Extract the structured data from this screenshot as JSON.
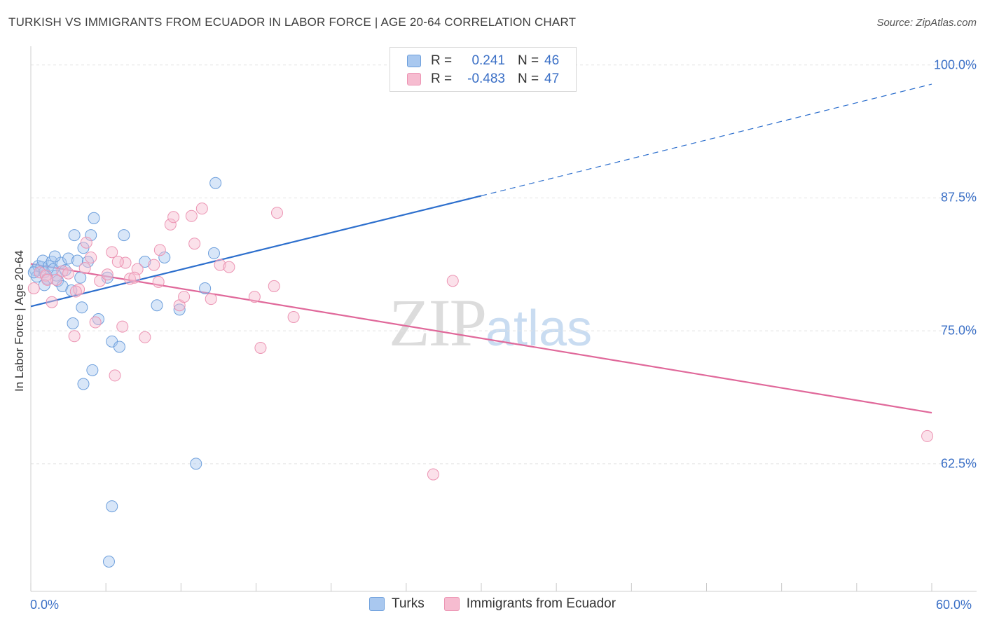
{
  "title": "TURKISH VS IMMIGRANTS FROM ECUADOR IN LABOR FORCE | AGE 20-64 CORRELATION CHART",
  "source": "Source: ZipAtlas.com",
  "watermark": {
    "zip": "ZIP",
    "atlas": "atlas"
  },
  "legend": {
    "rows": [
      {
        "r_label": "R =",
        "r_value": "0.241",
        "n_label": "N =",
        "n_value": "46"
      },
      {
        "r_label": "R =",
        "r_value": "-0.483",
        "n_label": "N =",
        "n_value": "47"
      }
    ]
  },
  "colors": {
    "blue_fill": "#a9c8ef",
    "blue_stroke": "#6d9fdc",
    "blue_line": "#2d6fcd",
    "pink_fill": "#f6bcd0",
    "pink_stroke": "#ec94b3",
    "pink_line": "#e0689a",
    "axis_label": "#3a6fc6",
    "grid": "#e3e3e3"
  },
  "chart_data": {
    "type": "scatter",
    "title": "TURKISH VS IMMIGRANTS FROM ECUADOR IN LABOR FORCE | AGE 20-64 CORRELATION CHART",
    "xlabel": "",
    "ylabel": "In Labor Force | Age 20-64",
    "xlim": [
      0,
      60
    ],
    "ylim": [
      50.5,
      101.5
    ],
    "x_tick_labels": [
      "0.0%",
      "60.0%"
    ],
    "y_ticks": [
      62.5,
      75.0,
      87.5,
      100.0
    ],
    "y_tick_labels": [
      "62.5%",
      "75.0%",
      "87.5%",
      "100.0%"
    ],
    "series": [
      {
        "name": "Turks",
        "color_key": "blue",
        "r": 0.241,
        "n": 46,
        "trend": {
          "x0": 0.0,
          "y0": 77.3,
          "x1": 30.0,
          "y1": 87.7,
          "dash_to_x": 60.0,
          "dash_to_y": 98.2
        },
        "points": [
          [
            0.3,
            80.7
          ],
          [
            0.4,
            80.1
          ],
          [
            0.5,
            81.1
          ],
          [
            0.7,
            81.0
          ],
          [
            0.8,
            81.6
          ],
          [
            0.9,
            80.5
          ],
          [
            1.1,
            79.9
          ],
          [
            1.2,
            81.1
          ],
          [
            1.4,
            81.5
          ],
          [
            1.5,
            80.8
          ],
          [
            1.7,
            80.2
          ],
          [
            1.8,
            79.7
          ],
          [
            2.0,
            81.4
          ],
          [
            2.1,
            79.2
          ],
          [
            2.3,
            80.7
          ],
          [
            2.5,
            81.8
          ],
          [
            2.7,
            78.8
          ],
          [
            2.9,
            84.0
          ],
          [
            3.1,
            81.6
          ],
          [
            3.3,
            80.0
          ],
          [
            3.5,
            82.8
          ],
          [
            3.8,
            81.5
          ],
          [
            4.0,
            84.0
          ],
          [
            4.2,
            85.6
          ],
          [
            4.5,
            76.1
          ],
          [
            5.1,
            80.0
          ],
          [
            5.4,
            74.0
          ],
          [
            5.9,
            73.5
          ],
          [
            6.2,
            84.0
          ],
          [
            7.6,
            81.5
          ],
          [
            8.4,
            77.4
          ],
          [
            8.9,
            81.9
          ],
          [
            9.9,
            77.0
          ],
          [
            11.6,
            79.0
          ],
          [
            12.2,
            82.3
          ],
          [
            12.3,
            88.9
          ],
          [
            2.8,
            75.7
          ],
          [
            3.4,
            77.2
          ],
          [
            4.1,
            71.3
          ],
          [
            3.5,
            70.0
          ],
          [
            11.0,
            62.5
          ],
          [
            5.4,
            58.5
          ],
          [
            5.2,
            53.3
          ],
          [
            1.6,
            82.0
          ],
          [
            0.9,
            79.3
          ],
          [
            0.2,
            80.5
          ]
        ]
      },
      {
        "name": "Immigrants from Ecuador",
        "color_key": "pink",
        "r": -0.483,
        "n": 47,
        "trend": {
          "x0": 0.0,
          "y0": 81.3,
          "x1": 60.0,
          "y1": 67.3
        },
        "points": [
          [
            0.2,
            79.0
          ],
          [
            0.6,
            80.5
          ],
          [
            1.0,
            80.2
          ],
          [
            1.4,
            77.7
          ],
          [
            1.7,
            79.8
          ],
          [
            2.1,
            80.6
          ],
          [
            2.5,
            80.4
          ],
          [
            2.9,
            74.5
          ],
          [
            3.2,
            78.9
          ],
          [
            3.7,
            83.3
          ],
          [
            4.0,
            81.9
          ],
          [
            4.3,
            75.8
          ],
          [
            4.6,
            79.7
          ],
          [
            5.1,
            80.3
          ],
          [
            5.4,
            82.4
          ],
          [
            5.6,
            70.8
          ],
          [
            6.1,
            75.4
          ],
          [
            6.3,
            81.4
          ],
          [
            6.6,
            79.9
          ],
          [
            7.1,
            80.8
          ],
          [
            7.6,
            74.4
          ],
          [
            8.2,
            81.2
          ],
          [
            8.5,
            79.6
          ],
          [
            9.3,
            85.0
          ],
          [
            9.5,
            85.7
          ],
          [
            9.9,
            77.4
          ],
          [
            10.2,
            78.2
          ],
          [
            10.7,
            85.8
          ],
          [
            10.9,
            83.2
          ],
          [
            11.4,
            86.5
          ],
          [
            12.0,
            78.0
          ],
          [
            12.6,
            81.2
          ],
          [
            13.2,
            81.0
          ],
          [
            14.9,
            78.2
          ],
          [
            15.3,
            73.4
          ],
          [
            16.2,
            79.2
          ],
          [
            16.4,
            86.1
          ],
          [
            17.5,
            76.3
          ],
          [
            28.1,
            79.7
          ],
          [
            26.8,
            61.5
          ],
          [
            59.7,
            65.1
          ],
          [
            1.1,
            79.8
          ],
          [
            3.0,
            78.7
          ],
          [
            6.9,
            80.0
          ],
          [
            5.8,
            81.5
          ],
          [
            8.6,
            82.6
          ],
          [
            3.6,
            80.9
          ]
        ]
      }
    ]
  }
}
